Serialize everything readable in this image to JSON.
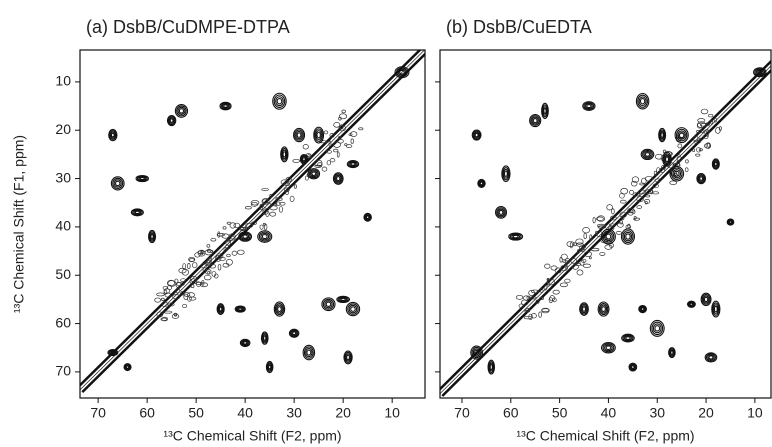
{
  "chart_data": [
    {
      "type": "contour",
      "title": "(a)  DsbB/CuDMPE-DTPA",
      "x_label": "¹³C Chemical Shift  (F2, ppm)",
      "y_label": "¹³C Chemical Shift  (F1, ppm)",
      "xlim": [
        73.7,
        3.3
      ],
      "ylim": [
        3.4,
        75.4
      ],
      "xticks": [
        70,
        60,
        50,
        40,
        30,
        20,
        10
      ],
      "yticks": [
        10,
        20,
        30,
        40,
        50,
        60,
        70
      ],
      "x": [
        8,
        67,
        66,
        61,
        59,
        62,
        55,
        53,
        44,
        33,
        29,
        32,
        28,
        26,
        25,
        21,
        18,
        15,
        40,
        36,
        45,
        41,
        33,
        30,
        36,
        40,
        20,
        18,
        23,
        27,
        19,
        67,
        64,
        35
      ],
      "y": [
        8,
        21,
        31,
        30,
        42,
        37,
        18,
        16,
        15,
        14,
        21,
        25,
        26,
        29,
        21,
        30,
        27,
        38,
        42,
        42,
        57,
        57,
        57,
        62,
        63,
        64,
        55,
        57,
        56,
        66,
        67,
        66,
        69,
        69
      ]
    },
    {
      "type": "contour",
      "title": "(b)  DsbB/CuEDTA",
      "x_label": "¹³C Chemical Shift  (F2, ppm)",
      "xlim": [
        74.5,
        6.7
      ],
      "ylim": [
        3.4,
        75.4
      ],
      "xticks": [
        70,
        60,
        50,
        40,
        30,
        20,
        10
      ],
      "yticks": [
        10,
        20,
        30,
        40,
        50,
        60,
        70
      ],
      "x": [
        9,
        67,
        66,
        61,
        59,
        62,
        55,
        53,
        44,
        33,
        29,
        32,
        28,
        26,
        25,
        21,
        18,
        15,
        40,
        36,
        45,
        41,
        33,
        30,
        36,
        40,
        20,
        18,
        23,
        27,
        19,
        67,
        64,
        35
      ],
      "y": [
        8,
        21,
        31,
        29,
        42,
        37,
        18,
        16,
        15,
        14,
        21,
        25,
        26,
        29,
        21,
        30,
        27,
        39,
        42,
        42,
        57,
        57,
        57,
        61,
        63,
        65,
        55,
        57,
        56,
        66,
        67,
        66,
        69,
        69
      ]
    }
  ]
}
